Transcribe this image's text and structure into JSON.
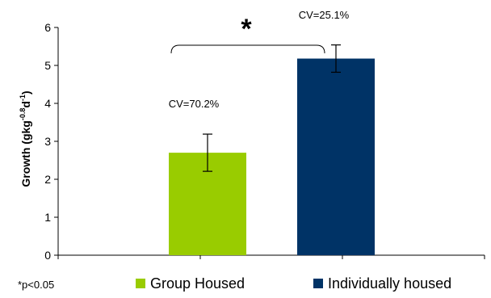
{
  "chart_data": {
    "type": "bar",
    "categories": [
      "Group Housed",
      "Individually housed"
    ],
    "values": [
      2.7,
      5.18
    ],
    "errors": [
      0.49,
      0.36
    ],
    "colors": [
      "#99cc00",
      "#003366"
    ],
    "ylabel_main": "Growth (gkg",
    "ylabel_sup1": "-0.8",
    "ylabel_mid": "d",
    "ylabel_sup2": "-1",
    "ylabel_end": ")",
    "ylim": [
      0,
      6
    ],
    "yticks": [
      "0",
      "1",
      "2",
      "3",
      "4",
      "5",
      "6"
    ],
    "annotations": {
      "cv_group": "CV=70.2%",
      "cv_individual": "CV=25.1%",
      "significance": "*",
      "footnote": "*p<0.05"
    },
    "legend": {
      "placement": "bottom",
      "entries": [
        "Group Housed",
        "Individually housed"
      ]
    },
    "grid": false
  }
}
